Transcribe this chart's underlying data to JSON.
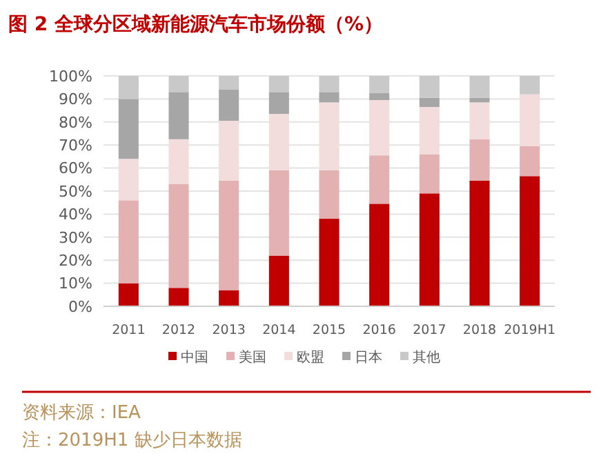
{
  "chart_data": {
    "type": "bar",
    "title": "图 2  全球分区域新能源汽车市场份额（%）",
    "stacked": true,
    "categories": [
      "2011",
      "2012",
      "2013",
      "2014",
      "2015",
      "2016",
      "2017",
      "2018",
      "2019H1"
    ],
    "series": [
      {
        "name": "中国",
        "color": "#c00000",
        "values": [
          10,
          8,
          7,
          22,
          38,
          44.5,
          49,
          54.5,
          56.5
        ]
      },
      {
        "name": "美国",
        "color": "#e3b1b1",
        "values": [
          36,
          45,
          47.5,
          37,
          21,
          21,
          17,
          18,
          13
        ]
      },
      {
        "name": "欧盟",
        "color": "#f2dcdc",
        "values": [
          18,
          19.5,
          26,
          24.5,
          29.5,
          24,
          20.5,
          16,
          22.5
        ]
      },
      {
        "name": "日本",
        "color": "#a6a6a6",
        "values": [
          26,
          20.5,
          13.5,
          9.5,
          4.5,
          3,
          4,
          2,
          null
        ]
      },
      {
        "name": "其他",
        "color": "#c9c9c9",
        "values": [
          10,
          7,
          6,
          7,
          7,
          7.5,
          9.5,
          9.5,
          8
        ]
      }
    ],
    "ylim": [
      0,
      100
    ],
    "yticks": [
      {
        "value": 0,
        "label": "0%"
      },
      {
        "value": 10,
        "label": "10%"
      },
      {
        "value": 20,
        "label": "20%"
      },
      {
        "value": 30,
        "label": "30%"
      },
      {
        "value": 40,
        "label": "40%"
      },
      {
        "value": 50,
        "label": "50%"
      },
      {
        "value": 60,
        "label": "60%"
      },
      {
        "value": 70,
        "label": "70%"
      },
      {
        "value": 80,
        "label": "80%"
      },
      {
        "value": 90,
        "label": "90%"
      },
      {
        "value": 100,
        "label": "100%"
      }
    ],
    "grid": "y",
    "legend": "bottom",
    "annotations": [
      "资料来源：IEA",
      "注：2019H1 缺少日本数据"
    ]
  }
}
